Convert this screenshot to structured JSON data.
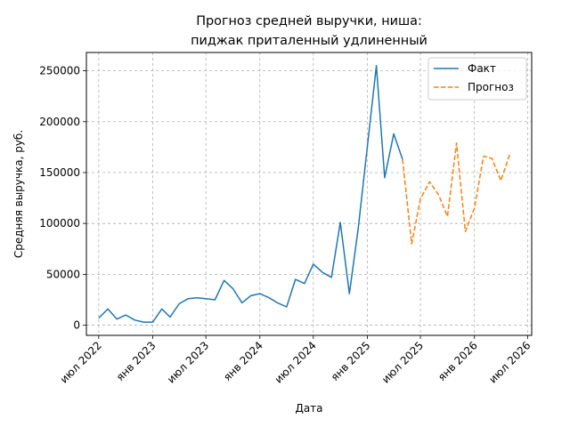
{
  "chart_data": {
    "type": "line",
    "title_line1": "Прогноз средней выручки, ниша:",
    "title_line2": "пиджак приталенный удлиненный",
    "xlabel": "Дата",
    "ylabel": "Средняя выручка, руб.",
    "grid": true,
    "legend_position": "top-right",
    "ylim": [
      -10000,
      268000
    ],
    "xlim": [
      "2022-05-20",
      "2026-07-15"
    ],
    "x_ticks": [
      {
        "date": "2022-07-01",
        "label": "июл 2022"
      },
      {
        "date": "2023-01-01",
        "label": "янв 2023"
      },
      {
        "date": "2023-07-01",
        "label": "июл 2023"
      },
      {
        "date": "2024-01-01",
        "label": "янв 2024"
      },
      {
        "date": "2024-07-01",
        "label": "июл 2024"
      },
      {
        "date": "2025-01-01",
        "label": "янв 2025"
      },
      {
        "date": "2025-07-01",
        "label": "июл 2025"
      },
      {
        "date": "2026-01-01",
        "label": "янв 2026"
      },
      {
        "date": "2026-07-01",
        "label": "июл 2026"
      }
    ],
    "y_ticks": [
      {
        "value": 0,
        "label": "0"
      },
      {
        "value": 50000,
        "label": "50000"
      },
      {
        "value": 100000,
        "label": "100000"
      },
      {
        "value": 150000,
        "label": "150000"
      },
      {
        "value": 200000,
        "label": "200000"
      },
      {
        "value": 250000,
        "label": "250000"
      }
    ],
    "series": [
      {
        "name": "Факт",
        "color": "#1f77b4",
        "style": "solid",
        "x": [
          "2022-07-01",
          "2022-08-01",
          "2022-09-01",
          "2022-10-01",
          "2022-11-01",
          "2022-12-01",
          "2023-01-01",
          "2023-02-01",
          "2023-03-01",
          "2023-04-01",
          "2023-05-01",
          "2023-06-01",
          "2023-07-01",
          "2023-08-01",
          "2023-09-01",
          "2023-10-01",
          "2023-11-01",
          "2023-12-01",
          "2024-01-01",
          "2024-02-01",
          "2024-03-01",
          "2024-04-01",
          "2024-05-01",
          "2024-06-01",
          "2024-07-01",
          "2024-08-01",
          "2024-09-01",
          "2024-10-01",
          "2024-11-01",
          "2024-12-01",
          "2025-01-01",
          "2025-02-01",
          "2025-03-01",
          "2025-04-01",
          "2025-05-01"
        ],
        "y": [
          7000,
          16000,
          6000,
          10000,
          5000,
          3000,
          3000,
          16000,
          8000,
          21000,
          26000,
          27000,
          26000,
          25000,
          44000,
          36000,
          22000,
          29000,
          31000,
          27000,
          22000,
          18000,
          45000,
          41000,
          60000,
          52000,
          47000,
          101000,
          31000,
          95000,
          175000,
          255000,
          145000,
          188000,
          163000
        ]
      },
      {
        "name": "Прогноз",
        "color": "#ff7f0e",
        "style": "dashed",
        "x": [
          "2025-05-01",
          "2025-06-01",
          "2025-07-01",
          "2025-08-01",
          "2025-09-01",
          "2025-10-01",
          "2025-11-01",
          "2025-12-01",
          "2026-01-01",
          "2026-02-01",
          "2026-03-01",
          "2026-04-01",
          "2026-05-01"
        ],
        "y": [
          163000,
          80000,
          124000,
          141000,
          128000,
          107000,
          179000,
          92000,
          115000,
          166000,
          164000,
          142000,
          168000
        ]
      }
    ]
  }
}
